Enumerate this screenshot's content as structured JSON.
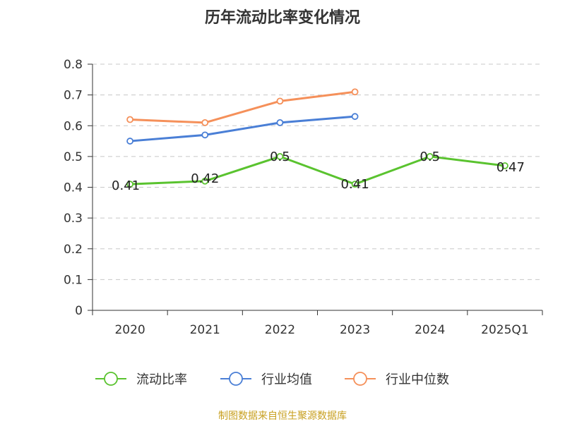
{
  "chart_data": {
    "type": "line",
    "title": "历年流动比率变化情况",
    "categories": [
      "2020",
      "2021",
      "2022",
      "2023",
      "2024",
      "2025Q1"
    ],
    "ylim": [
      0,
      0.8
    ],
    "yticks": [
      "0",
      "0.1",
      "0.2",
      "0.3",
      "0.4",
      "0.5",
      "0.6",
      "0.7",
      "0.8"
    ],
    "grid": true,
    "legend_position": "bottom",
    "series": [
      {
        "name": "流动比率",
        "color": "#5ac32f",
        "values": [
          0.41,
          0.42,
          0.5,
          0.41,
          0.5,
          0.47
        ],
        "labels": [
          "0.41",
          "0.42",
          "0.5",
          "0.41",
          "0.5",
          "0.47"
        ]
      },
      {
        "name": "行业均值",
        "color": "#4a7fd6",
        "values": [
          0.55,
          0.57,
          0.61,
          0.63,
          null,
          null
        ]
      },
      {
        "name": "行业中位数",
        "color": "#f5905a",
        "values": [
          0.62,
          0.61,
          0.68,
          0.71,
          null,
          null
        ]
      }
    ],
    "source": "制图数据来自恒生聚源数据库"
  }
}
